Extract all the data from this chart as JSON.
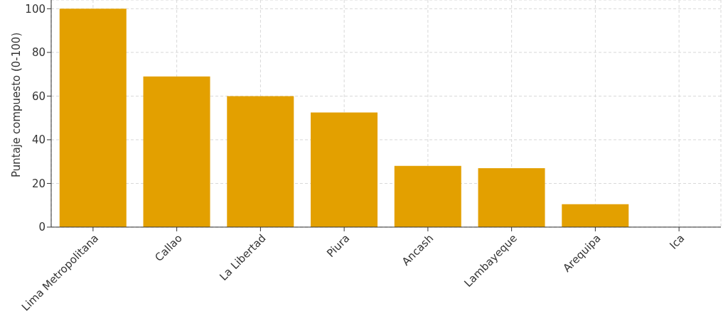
{
  "chart_data": {
    "type": "bar",
    "ylabel": "Puntaje compuesto (0-100)",
    "categories": [
      "Lima Metropolitana",
      "Callao",
      "La Libertad",
      "Piura",
      "Ancash",
      "Lambayeque",
      "Arequipa",
      "Ica"
    ],
    "values": [
      100,
      69,
      60,
      52.5,
      28,
      27,
      10.5,
      0
    ],
    "color": "#e3a000",
    "ylim": [
      0,
      104
    ],
    "yticks": [
      0,
      20,
      40,
      60,
      80,
      100
    ],
    "grid": true
  }
}
